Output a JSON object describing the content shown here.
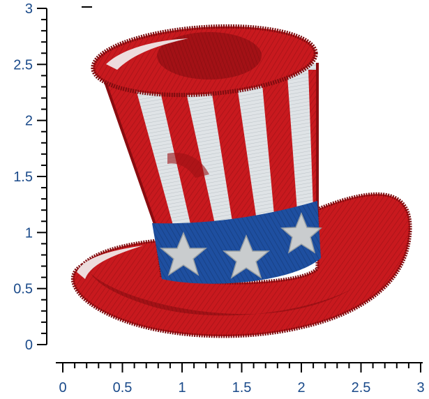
{
  "artwork": {
    "subject": "top-hat-embroidery",
    "colors": {
      "red": "#c8191e",
      "dark_red": "#8e0f12",
      "white": "#dfe3e6",
      "blue": "#1e4fa0",
      "star": "#c9ccce"
    }
  },
  "rulers": {
    "x": {
      "min": 0,
      "max": 3,
      "major_step": 0.5,
      "minor_step": 0.1,
      "tick_labels": [
        "0",
        "0.5",
        "1",
        "1.5",
        "2",
        "2.5",
        "3"
      ]
    },
    "y": {
      "min": 0,
      "max": 3,
      "major_step": 0.5,
      "minor_step": 0.1,
      "tick_labels": [
        "0",
        "0.5",
        "1",
        "1.5",
        "2",
        "2.5",
        "3"
      ]
    }
  }
}
